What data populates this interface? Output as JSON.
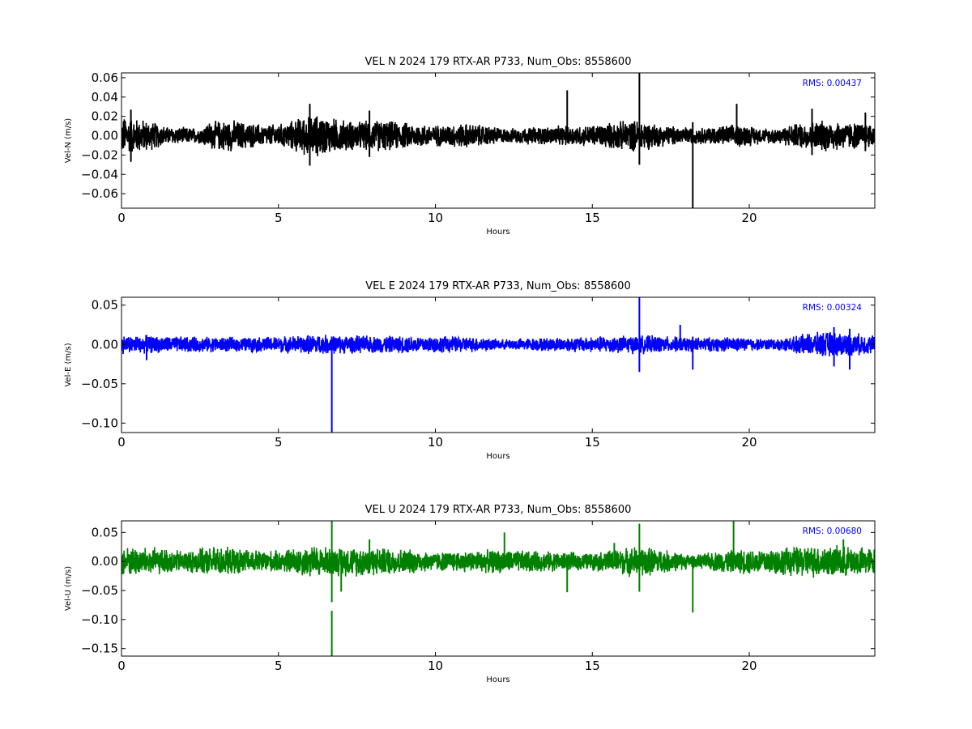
{
  "chart_data": [
    {
      "type": "line",
      "title": "VEL N 2024 179 RTX-AR  P733, Num_Obs: 8558600",
      "xlabel": "Hours",
      "ylabel": "Vel-N (m/s)",
      "xlim": [
        0,
        24
      ],
      "ylim": [
        -0.075,
        0.065
      ],
      "xticks": [
        0,
        5,
        10,
        15,
        20
      ],
      "yticks": [
        -0.06,
        -0.04,
        -0.02,
        0.0,
        0.02,
        0.04,
        0.06
      ],
      "ytick_labels": [
        "−0.06",
        "−0.04",
        "−0.02",
        "0.00",
        "0.02",
        "0.04",
        "0.06"
      ],
      "color": "#000000",
      "annotation": "RMS:  0.00437",
      "annotation_color": "#0000ff",
      "grid": false,
      "series": [
        {
          "noise_envelope": {
            "x": [
              0,
              0.8,
              1.5,
              2.5,
              2.8,
              3.5,
              4.5,
              5.2,
              5.8,
              6.2,
              6.7,
              7.5,
              8.2,
              9.0,
              10.0,
              11.0,
              12.0,
              12.3,
              13.0,
              14.0,
              15.0,
              15.8,
              16.5,
              17.2,
              18.0,
              18.3,
              19.0,
              19.8,
              20.5,
              21.0,
              21.5,
              22.5,
              23.0,
              24.0
            ],
            "amplitude": [
              0.022,
              0.018,
              0.01,
              0.009,
              0.016,
              0.018,
              0.012,
              0.014,
              0.022,
              0.024,
              0.02,
              0.016,
              0.018,
              0.015,
              0.012,
              0.014,
              0.01,
              0.008,
              0.01,
              0.011,
              0.012,
              0.016,
              0.018,
              0.012,
              0.01,
              0.009,
              0.011,
              0.013,
              0.008,
              0.01,
              0.014,
              0.018,
              0.016,
              0.014
            ]
          },
          "spikes": [
            {
              "x": 14.2,
              "y0": -0.005,
              "y1": 0.047
            },
            {
              "x": 16.5,
              "y0": -0.03,
              "y1": 0.065
            },
            {
              "x": 18.2,
              "y0": -0.075,
              "y1": 0.014
            },
            {
              "x": 19.6,
              "y0": -0.008,
              "y1": 0.033
            },
            {
              "x": 6.0,
              "y0": -0.031,
              "y1": 0.033
            },
            {
              "x": 0.3,
              "y0": -0.027,
              "y1": 0.027
            },
            {
              "x": 7.9,
              "y0": -0.022,
              "y1": 0.026
            },
            {
              "x": 22.0,
              "y0": -0.02,
              "y1": 0.028
            },
            {
              "x": 23.7,
              "y0": -0.016,
              "y1": 0.024
            }
          ]
        }
      ]
    },
    {
      "type": "line",
      "title": "VEL E 2024 179 RTX-AR  P733, Num_Obs: 8558600",
      "xlabel": "Hours",
      "ylabel": "Vel-E (m/s)",
      "xlim": [
        0,
        24
      ],
      "ylim": [
        -0.112,
        0.06
      ],
      "xticks": [
        0,
        5,
        10,
        15,
        20
      ],
      "yticks": [
        -0.1,
        -0.05,
        0.0,
        0.05
      ],
      "ytick_labels": [
        "−0.10",
        "−0.05",
        "0.00",
        "0.05"
      ],
      "color": "#0000ff",
      "annotation": "RMS:  0.00324",
      "annotation_color": "#0000ff",
      "grid": false,
      "series": [
        {
          "noise_envelope": {
            "x": [
              0,
              2.0,
              4.0,
              5.5,
              6.2,
              6.7,
              8.0,
              10.0,
              11.5,
              12.0,
              13.0,
              15.0,
              16.5,
              18.0,
              19.5,
              20.5,
              21.2,
              21.8,
              22.5,
              23.2,
              24.0
            ],
            "amplitude": [
              0.013,
              0.011,
              0.01,
              0.012,
              0.014,
              0.013,
              0.012,
              0.012,
              0.01,
              0.007,
              0.009,
              0.011,
              0.013,
              0.01,
              0.01,
              0.008,
              0.009,
              0.015,
              0.018,
              0.016,
              0.013
            ]
          },
          "spikes": [
            {
              "x": 6.7,
              "y0": -0.112,
              "y1": 0.01
            },
            {
              "x": 16.5,
              "y0": -0.035,
              "y1": 0.06
            },
            {
              "x": 17.8,
              "y0": -0.005,
              "y1": 0.025
            },
            {
              "x": 18.2,
              "y0": -0.032,
              "y1": 0.01
            },
            {
              "x": 23.2,
              "y0": -0.032,
              "y1": 0.02
            },
            {
              "x": 22.7,
              "y0": -0.028,
              "y1": 0.022
            },
            {
              "x": 0.8,
              "y0": -0.02,
              "y1": 0.012
            }
          ]
        }
      ]
    },
    {
      "type": "line",
      "title": "VEL U 2024 179 RTX-AR  P733, Num_Obs: 8558600",
      "xlabel": "Hours",
      "ylabel": "Vel-U (m/s)",
      "xlim": [
        0,
        24
      ],
      "ylim": [
        -0.163,
        0.07
      ],
      "xticks": [
        0,
        5,
        10,
        15,
        20
      ],
      "yticks": [
        -0.15,
        -0.1,
        -0.05,
        0.0,
        0.05
      ],
      "ytick_labels": [
        "−0.15",
        "−0.10",
        "−0.05",
        "0.00",
        "0.05"
      ],
      "color": "#008000",
      "annotation": "RMS:  0.00680",
      "annotation_color": "#0000ff",
      "grid": false,
      "series": [
        {
          "noise_envelope": {
            "x": [
              0,
              1.0,
              2.0,
              3.0,
              4.0,
              5.0,
              6.0,
              6.7,
              7.5,
              9.0,
              10.0,
              11.0,
              12.0,
              13.0,
              14.0,
              15.0,
              16.5,
              17.5,
              18.3,
              19.0,
              20.0,
              21.0,
              22.0,
              23.0,
              24.0
            ],
            "amplitude": [
              0.028,
              0.026,
              0.02,
              0.028,
              0.022,
              0.02,
              0.03,
              0.026,
              0.028,
              0.024,
              0.018,
              0.02,
              0.022,
              0.02,
              0.018,
              0.016,
              0.03,
              0.02,
              0.012,
              0.02,
              0.024,
              0.026,
              0.03,
              0.028,
              0.026
            ]
          },
          "spikes": [
            {
              "x": 6.7,
              "y0": -0.07,
              "y1": 0.07
            },
            {
              "x": 6.7,
              "y0": -0.163,
              "y1": -0.085
            },
            {
              "x": 7.0,
              "y0": -0.052,
              "y1": 0.02
            },
            {
              "x": 7.9,
              "y0": -0.02,
              "y1": 0.038
            },
            {
              "x": 12.2,
              "y0": -0.01,
              "y1": 0.05
            },
            {
              "x": 14.2,
              "y0": -0.053,
              "y1": 0.01
            },
            {
              "x": 15.7,
              "y0": -0.005,
              "y1": 0.032
            },
            {
              "x": 16.5,
              "y0": -0.052,
              "y1": 0.065
            },
            {
              "x": 18.2,
              "y0": -0.088,
              "y1": 0.01
            },
            {
              "x": 19.5,
              "y0": -0.005,
              "y1": 0.07
            },
            {
              "x": 23.0,
              "y0": -0.02,
              "y1": 0.038
            }
          ]
        }
      ]
    }
  ]
}
